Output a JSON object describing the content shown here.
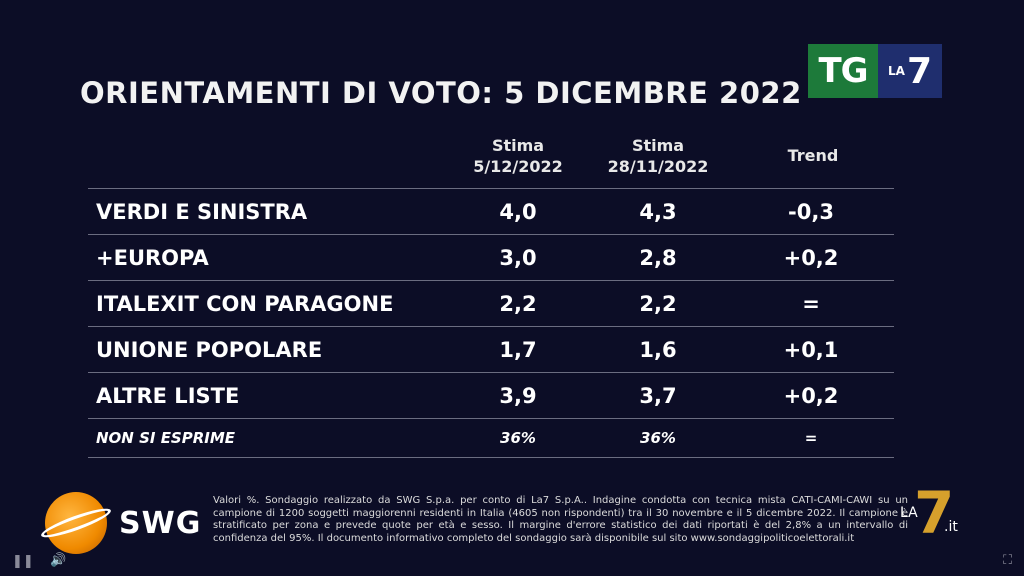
{
  "title": "ORIENTAMENTI DI VOTO: 5 DICEMBRE 2022",
  "logo": {
    "tg": "TG",
    "la": "LA",
    "seven": "7"
  },
  "columns": {
    "c1_line1": "Stima",
    "c1_line2": "5/12/2022",
    "c2_line1": "Stima",
    "c2_line2": "28/11/2022",
    "c3": "Trend"
  },
  "rows": [
    {
      "party": "VERDI E SINISTRA",
      "v1": "4,0",
      "v2": "4,3",
      "trend": "-0,3"
    },
    {
      "party": "+EUROPA",
      "v1": "3,0",
      "v2": "2,8",
      "trend": "+0,2"
    },
    {
      "party": "ITALEXIT CON PARAGONE",
      "v1": "2,2",
      "v2": "2,2",
      "trend": "="
    },
    {
      "party": "UNIONE POPOLARE",
      "v1": "1,7",
      "v2": "1,6",
      "trend": "+0,1"
    },
    {
      "party": "ALTRE LISTE",
      "v1": "3,9",
      "v2": "3,7",
      "trend": "+0,2"
    },
    {
      "party": "NON SI ESPRIME",
      "v1": "36%",
      "v2": "36%",
      "trend": "="
    }
  ],
  "swg": {
    "name": "SWG"
  },
  "footnote": "Valori %. Sondaggio realizzato da SWG S.p.a. per conto di La7 S.p.A.. Indagine condotta con tecnica mista CATI-CAMI-CAWI su un campione di 1200 soggetti maggiorenni residenti in Italia (4605 non rispondenti) tra il 30 novembre e il 5 dicembre 2022. Il campione è stratificato per zona e prevede quote per età e sesso. Il margine d'errore statistico dei dati riportati è del 2,8% a un intervallo di confidenza del 95%. Il documento informativo completo del sondaggio sarà disponibile sul sito www.sondaggipoliticoelettorali.it",
  "watermark": {
    "la": "LA",
    "seven": "7",
    "it": ".it"
  },
  "colors": {
    "background": "#0c0d26",
    "tg_green": "#1d7a3a",
    "la7_blue": "#1f2e6e",
    "swg_orange": "#f08a00"
  },
  "controls": {
    "pause_icon": "pause-icon",
    "volume_icon": "volume-icon",
    "fullscreen_icon": "fullscreen-icon"
  }
}
